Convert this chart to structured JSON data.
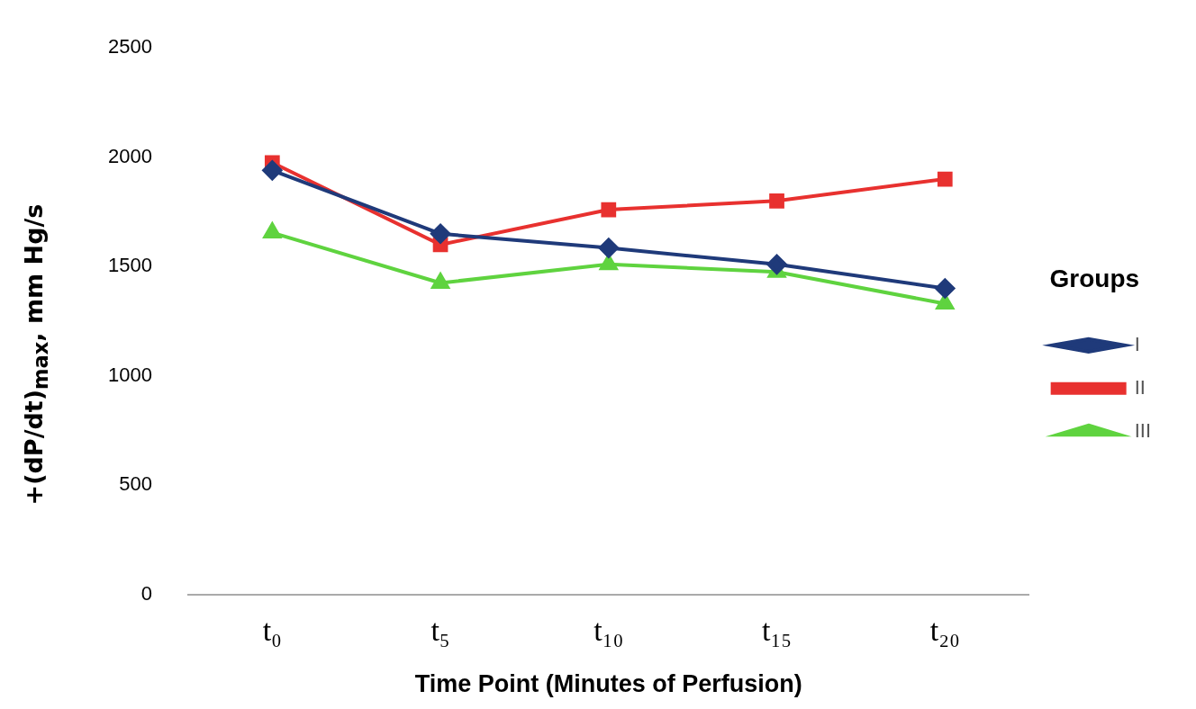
{
  "chart_data": {
    "type": "line",
    "xlabel": "Time Point (Minutes of Perfusion)",
    "ylabel": "+(dP/dt)$_{max}$, mm Hg/s",
    "legend_title": "Groups",
    "categories": [
      "t₀",
      "t₅",
      "t₁₀",
      "t₁₅",
      "t₂₀"
    ],
    "series": [
      {
        "name": "I",
        "color": "#1f3a7a",
        "marker": "diamond",
        "values": [
          1940,
          1650,
          1585,
          1510,
          1400
        ]
      },
      {
        "name": "II",
        "color": "#e8312f",
        "marker": "square",
        "values": [
          1975,
          1600,
          1760,
          1800,
          1900
        ]
      },
      {
        "name": "III",
        "color": "#5fd33f",
        "marker": "triangle",
        "values": [
          1655,
          1425,
          1510,
          1475,
          1330
        ]
      }
    ],
    "ylim": [
      0,
      2500
    ],
    "yticks": [
      0,
      500,
      1000,
      1500,
      2000,
      2500
    ],
    "grid": false,
    "legend": "right",
    "line_style": "solid"
  }
}
